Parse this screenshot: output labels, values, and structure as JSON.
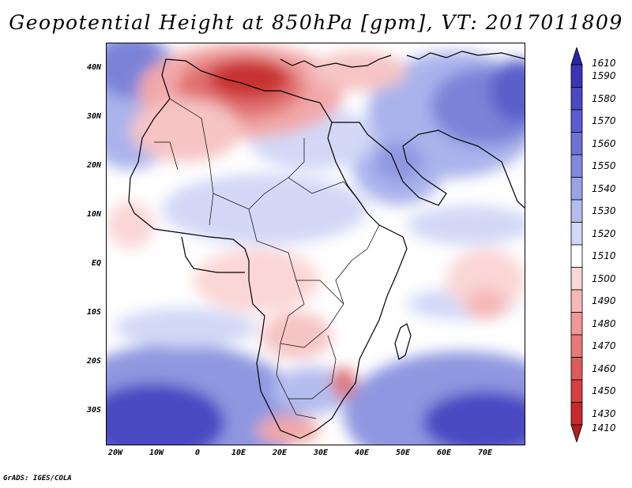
{
  "title": "Geopotential Height at 850hPa [gpm], VT: 2017011809",
  "credit": "GrADS: IGES/COLA",
  "map": {
    "lat_labels": [
      "40N",
      "30N",
      "20N",
      "10N",
      "EQ",
      "10S",
      "20S",
      "30S"
    ],
    "lon_labels": [
      "20W",
      "10W",
      "0",
      "10E",
      "20E",
      "30E",
      "40E",
      "50E",
      "60E",
      "70E"
    ]
  },
  "colorbar": {
    "levels": [
      "1610",
      "1590",
      "1580",
      "1570",
      "1560",
      "1550",
      "1540",
      "1530",
      "1520",
      "1510",
      "1500",
      "1490",
      "1480",
      "1470",
      "1460",
      "1450",
      "1430",
      "1410"
    ],
    "colors": [
      "#2b24a3",
      "#3a35b5",
      "#4a48c2",
      "#5b5cce",
      "#6e72d6",
      "#8489de",
      "#9ba2e6",
      "#b5bdee",
      "#d2d8f6",
      "#ffffff",
      "#fbd6d6",
      "#f6b7b7",
      "#ee9898",
      "#e67979",
      "#de5b5b",
      "#d53f3f",
      "#c62a2a",
      "#b01e1e"
    ]
  }
}
